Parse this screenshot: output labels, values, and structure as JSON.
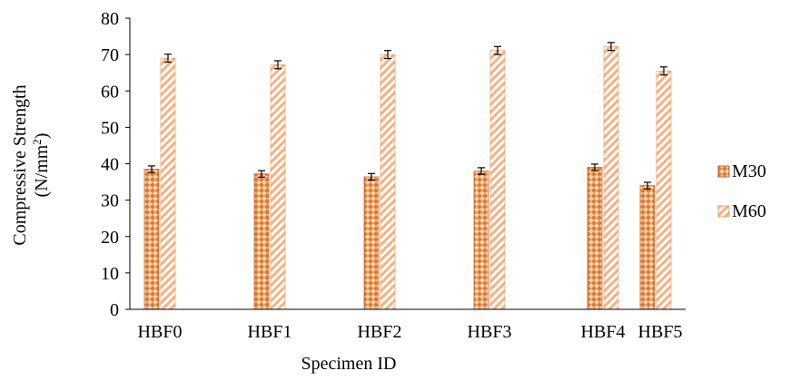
{
  "chart_data": {
    "type": "bar",
    "xlabel": "Specimen ID",
    "ylabel_line1": "Compressive Strength",
    "ylabel_line2_base": "(N/mm",
    "ylabel_line2_sup": "2",
    "ylabel_line2_end": ")",
    "ylim": [
      0,
      80
    ],
    "yticks": [
      "0",
      "10",
      "20",
      "30",
      "40",
      "50",
      "60",
      "70",
      "80"
    ],
    "categories": [
      "HBF0",
      "HBF1",
      "HBF2",
      "HBF3",
      "HBF4",
      "HBF5"
    ],
    "series": [
      {
        "name": "M30",
        "values": [
          38.5,
          37.2,
          36.4,
          38.0,
          39.0,
          34.0
        ],
        "error": 0.9,
        "color": "#e07a2e"
      },
      {
        "name": "M60",
        "values": [
          69.0,
          67.2,
          70.0,
          71.1,
          72.2,
          65.5
        ],
        "error": 1.1,
        "color": "#f4b183"
      }
    ],
    "grid": false,
    "legend_position": "right"
  }
}
